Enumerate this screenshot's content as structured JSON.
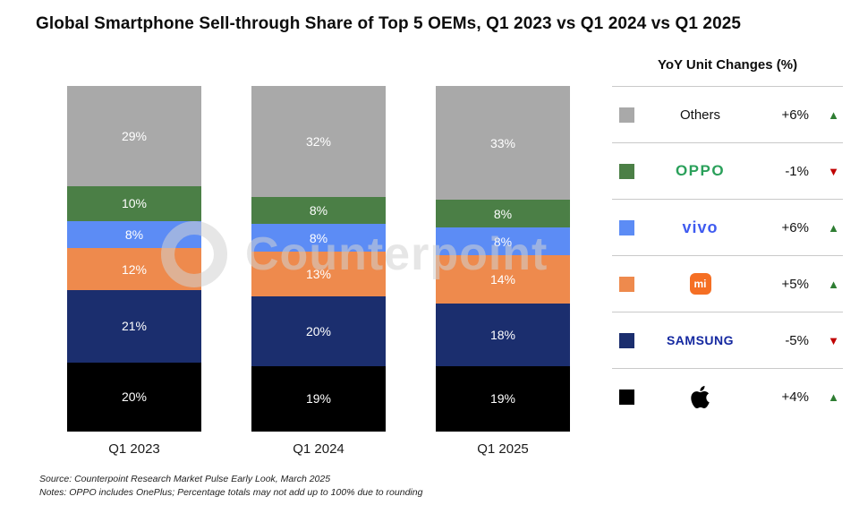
{
  "chart_data": {
    "type": "bar",
    "stacked": true,
    "title": "Global Smartphone Sell-through Share of Top 5 OEMs, Q1 2023 vs Q1 2024 vs Q1 2025",
    "categories": [
      "Q1 2023",
      "Q1 2024",
      "Q1 2025"
    ],
    "series": [
      {
        "name": "Apple",
        "color": "#000000",
        "values": [
          20,
          19,
          19
        ]
      },
      {
        "name": "Samsung",
        "color": "#1b2e6e",
        "values": [
          21,
          20,
          18
        ]
      },
      {
        "name": "Xiaomi",
        "color": "#ee8a4d",
        "values": [
          12,
          13,
          14
        ]
      },
      {
        "name": "vivo",
        "color": "#5c8cf5",
        "values": [
          8,
          8,
          8
        ]
      },
      {
        "name": "OPPO",
        "color": "#4b7f46",
        "values": [
          10,
          8,
          8
        ]
      },
      {
        "name": "Others",
        "color": "#a9a9a9",
        "values": [
          29,
          32,
          33
        ]
      }
    ],
    "value_suffix": "%",
    "ylim": [
      0,
      100
    ],
    "grid": false,
    "legend_position": "right"
  },
  "legend": {
    "title": "YoY Unit Changes (%)",
    "up_color": "#2e7d32",
    "down_color": "#c00000",
    "rows": [
      {
        "brand": "Others",
        "logo": "others",
        "label": "Others",
        "change": "+6%",
        "direction": "up",
        "swatch": "#a9a9a9"
      },
      {
        "brand": "OPPO",
        "logo": "oppo",
        "label": "OPPO",
        "change": "-1%",
        "direction": "down",
        "swatch": "#4b7f46"
      },
      {
        "brand": "vivo",
        "logo": "vivo",
        "label": "vivo",
        "change": "+6%",
        "direction": "up",
        "swatch": "#5c8cf5"
      },
      {
        "brand": "Xiaomi",
        "logo": "mi",
        "label": "mi",
        "change": "+5%",
        "direction": "up",
        "swatch": "#ee8a4d"
      },
      {
        "brand": "Samsung",
        "logo": "samsung",
        "label": "SAMSUNG",
        "change": "-5%",
        "direction": "down",
        "swatch": "#1b2e6e"
      },
      {
        "brand": "Apple",
        "logo": "apple",
        "label": "",
        "change": "+4%",
        "direction": "up",
        "swatch": "#000000"
      }
    ]
  },
  "watermark": {
    "text": "Counterpoint"
  },
  "footer": {
    "source": "Source: Counterpoint Research Market Pulse Early Look, March 2025",
    "notes": "Notes: OPPO includes OnePlus; Percentage totals may not add up to 100% due to rounding"
  }
}
